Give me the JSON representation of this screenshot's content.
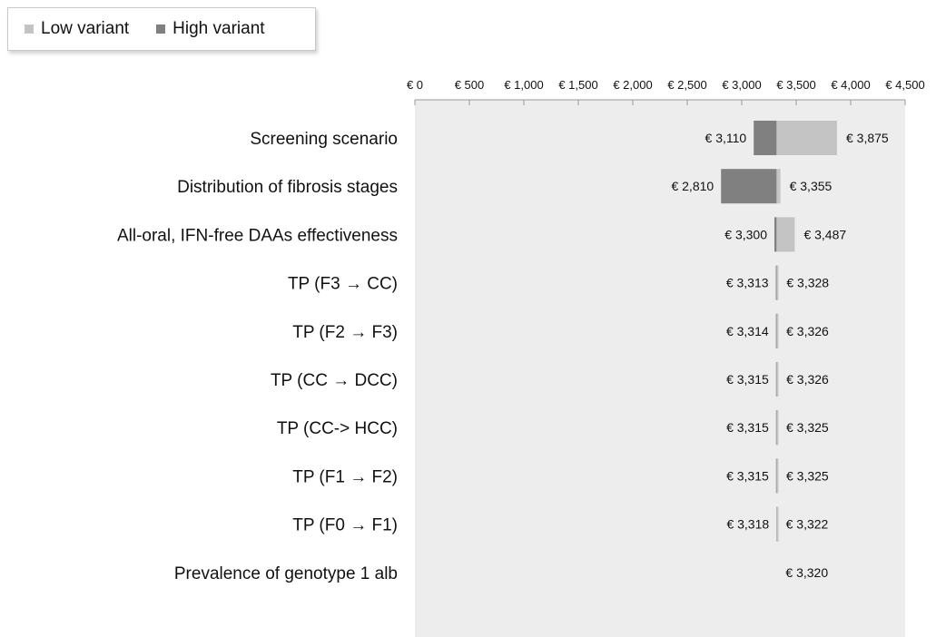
{
  "chart_data": {
    "type": "bar",
    "subtype": "tornado",
    "title": "",
    "xlabel": "",
    "ylabel": "",
    "xlim": [
      0,
      4500
    ],
    "ticks": [
      0,
      500,
      1000,
      1500,
      2000,
      2500,
      3000,
      3500,
      4000,
      4500
    ],
    "tick_labels": [
      "€ 0",
      "€ 500",
      "€ 1,000",
      "€ 1,500",
      "€ 2,000",
      "€ 2,500",
      "€ 3,000",
      "€ 3,500",
      "€ 4,000",
      "€ 4,500"
    ],
    "base_value": 3320,
    "legend": {
      "position": "top-left",
      "entries": [
        {
          "name": "Low variant",
          "color": "#c4c4c4"
        },
        {
          "name": "High variant",
          "color": "#808080"
        }
      ]
    },
    "colors": {
      "low": "#c4c4c4",
      "high": "#808080",
      "plot_background": "#ededed"
    },
    "categories": [
      "Screening scenario",
      "Distribution of fibrosis stages",
      "All-oral, IFN-free DAAs effectiveness",
      "TP (F3 → CC)",
      "TP (F2 → F3)",
      "TP (CC → DCC)",
      "TP (CC-> HCC)",
      "TP (F1 → F2)",
      "TP (F0 → F1)",
      "Prevalence of genotype 1 alb"
    ],
    "min_values": [
      3110,
      2810,
      3300,
      3313,
      3314,
      3315,
      3315,
      3315,
      3318,
      null
    ],
    "max_values": [
      3875,
      3355,
      3487,
      3328,
      3326,
      3326,
      3325,
      3325,
      3322,
      3320
    ],
    "min_labels": [
      "€ 3,110",
      "€ 2,810",
      "€ 3,300",
      "€ 3,313",
      "€ 3,314",
      "€ 3,315",
      "€ 3,315",
      "€ 3,315",
      "€ 3,318",
      ""
    ],
    "max_labels": [
      "€ 3,875",
      "€ 3,355",
      "€ 3,487",
      "€ 3,328",
      "€ 3,326",
      "€ 3,326",
      "€ 3,325",
      "€ 3,325",
      "€ 3,322",
      "€ 3,320"
    ],
    "series": [
      {
        "name": "Low variant",
        "values": [
          3875,
          3355,
          3487,
          3328,
          3326,
          3326,
          3325,
          3325,
          3322,
          null
        ]
      },
      {
        "name": "High variant",
        "values": [
          3110,
          2810,
          3300,
          3313,
          3314,
          3315,
          3315,
          3315,
          3318,
          null
        ]
      }
    ]
  }
}
